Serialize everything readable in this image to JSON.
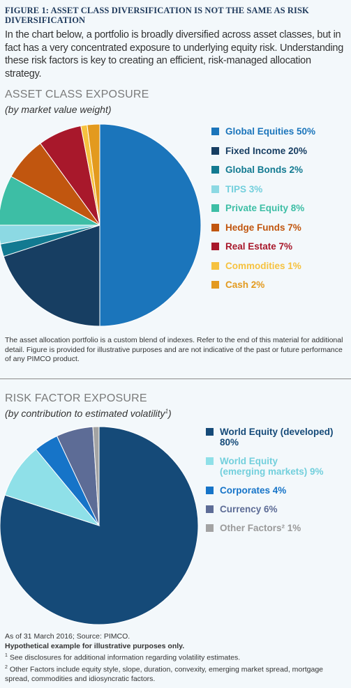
{
  "figure": {
    "title": "FIGURE 1: ASSET CLASS DIVERSIFICATION IS NOT THE SAME AS RISK DIVERSIFICATION",
    "intro": "In the chart below, a portfolio is broadly diversified across asset classes, but in fact has a very concentrated exposure to underlying equity risk. Understanding these risk factors is key to creating an efficient, risk-managed allocation strategy."
  },
  "chart_data": [
    {
      "type": "pie",
      "title": "ASSET CLASS EXPOSURE",
      "subtitle": "(by market value weight)",
      "start": "12 o'clock, clockwise",
      "slices": [
        {
          "label": "Global Equities 50%",
          "value": 50,
          "color": "#1b75bb"
        },
        {
          "label": "Fixed Income 20%",
          "value": 20,
          "color": "#173e62"
        },
        {
          "label": "Global Bonds 2%",
          "value": 2,
          "color": "#127a91"
        },
        {
          "label": "TIPS 3%",
          "value": 3,
          "color": "#8cd9e3"
        },
        {
          "label": "Private Equity 8%",
          "value": 8,
          "color": "#3dbea5"
        },
        {
          "label": "Hedge Funds 7%",
          "value": 7,
          "color": "#c1560f"
        },
        {
          "label": "Real Estate 7%",
          "value": 7,
          "color": "#a8182b"
        },
        {
          "label": "Commodities 1%",
          "value": 1,
          "color": "#f6c23f"
        },
        {
          "label": "Cash 2%",
          "value": 2,
          "color": "#e39a1e"
        }
      ],
      "note": "The asset allocation portfolio is a custom blend of indexes. Refer to the end of this material for additional detail. Figure is provided for illustrative purposes and are not indicative of the past or future performance of any PIMCO product."
    },
    {
      "type": "pie",
      "title": "RISK FACTOR EXPOSURE",
      "subtitle": "(by contribution to estimated volatility",
      "subtitle_sup": "1",
      "subtitle_end": ")",
      "start": "12 o'clock, clockwise",
      "slices": [
        {
          "label": "World Equity (developed) 80%",
          "value": 80,
          "color": "#154a78"
        },
        {
          "label": "World Equity\n(emerging markets) 9%",
          "value": 9,
          "color": "#8fe0e8"
        },
        {
          "label": "Corporates 4%",
          "value": 4,
          "color": "#1674c8"
        },
        {
          "label": "Currency 6%",
          "value": 6,
          "color": "#5d6c96"
        },
        {
          "label": "Other Factors² 1%",
          "value": 1,
          "color": "#a3a3a3"
        }
      ],
      "notes": {
        "source": "As of 31 March 2016; Source: PIMCO.",
        "hypothetical": "Hypothetical example for illustrative purposes only.",
        "fn1_mark": "1",
        "fn1": " See disclosures for additional information regarding volatility estimates.",
        "fn2_mark": "2",
        "fn2": " Other Factors include equity style, slope, duration, convexity, emerging market spread, mortgage spread, commodities and idiosyncratic factors."
      }
    }
  ]
}
